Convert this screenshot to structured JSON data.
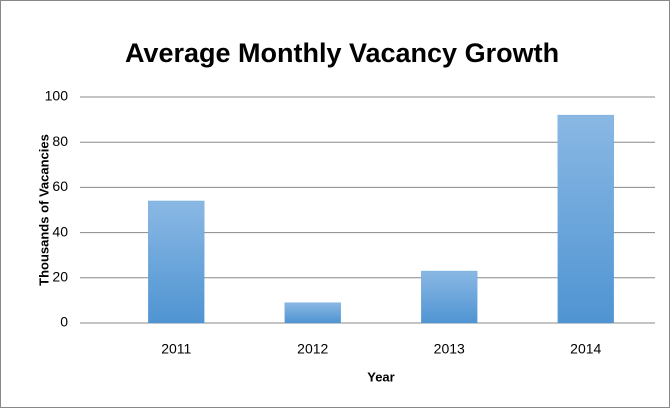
{
  "chart_data": {
    "type": "bar",
    "title": "Average Monthly Vacancy Growth",
    "x_label": "Year",
    "y_label": "Thousands of Vacancies",
    "categories": [
      "2011",
      "2012",
      "2013",
      "2014"
    ],
    "values": [
      54,
      9,
      23,
      92
    ],
    "color": "#5b9bd5",
    "ylim": [
      0,
      100
    ],
    "yticks": [
      0,
      20,
      40,
      60,
      80,
      100
    ],
    "grid": true
  }
}
